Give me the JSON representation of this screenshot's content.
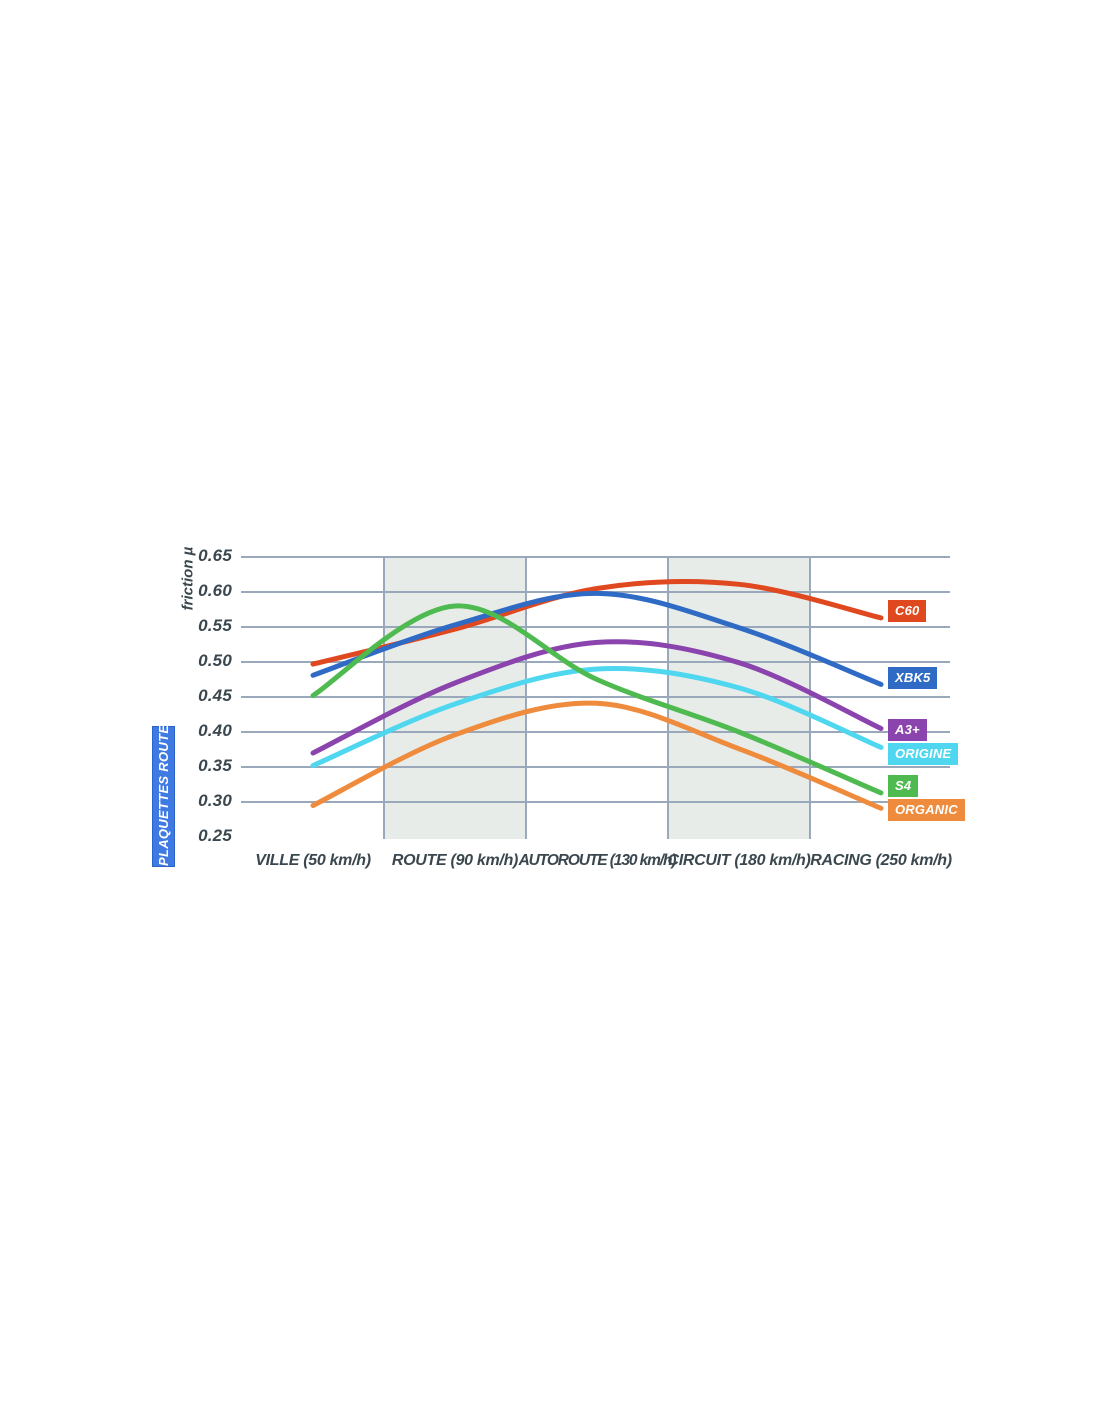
{
  "chart_data": {
    "type": "line",
    "ylabel": "friction µ",
    "side_label": "PLAQUETTES ROUTE",
    "categories": [
      "VILLE (50 km/h)",
      "ROUTE (90 km/h)",
      "AUTOROUTE (130 km/h)",
      "CIRCUIT (180 km/h)",
      "RACING (250 km/h)"
    ],
    "shaded_categories": [
      1,
      3
    ],
    "ylim": [
      0.25,
      0.65
    ],
    "yticks": [
      "0.65",
      "0.60",
      "0.55",
      "0.50",
      "0.45",
      "0.40",
      "0.35",
      "0.30",
      "0.25"
    ],
    "grid_values": [
      0.65,
      0.6,
      0.55,
      0.5,
      0.45,
      0.4,
      0.35,
      0.3
    ],
    "legend_position": "right",
    "series": [
      {
        "name": "C60",
        "color": "#e0491f",
        "values": [
          0.497,
          0.547,
          0.605,
          0.611,
          0.563
        ]
      },
      {
        "name": "XBK5",
        "color": "#2f6ac5",
        "values": [
          0.481,
          0.553,
          0.598,
          0.549,
          0.468
        ]
      },
      {
        "name": "A3+",
        "color": "#8b44ad",
        "values": [
          0.37,
          0.47,
          0.528,
          0.499,
          0.405
        ]
      },
      {
        "name": "ORIGINE",
        "color": "#4ed7ef",
        "values": [
          0.352,
          0.44,
          0.49,
          0.463,
          0.378
        ]
      },
      {
        "name": "S4",
        "color": "#4fba4f",
        "values": [
          0.452,
          0.58,
          0.475,
          0.4,
          0.313
        ]
      },
      {
        "name": "ORGANIC",
        "color": "#ee8b3c",
        "values": [
          0.295,
          0.396,
          0.441,
          0.376,
          0.291
        ]
      }
    ],
    "colors": {
      "grid": "#9aa8bb",
      "band": "#e8ece9",
      "text": "#3b474e",
      "side_badge_bg": "#3f7ae2"
    }
  }
}
